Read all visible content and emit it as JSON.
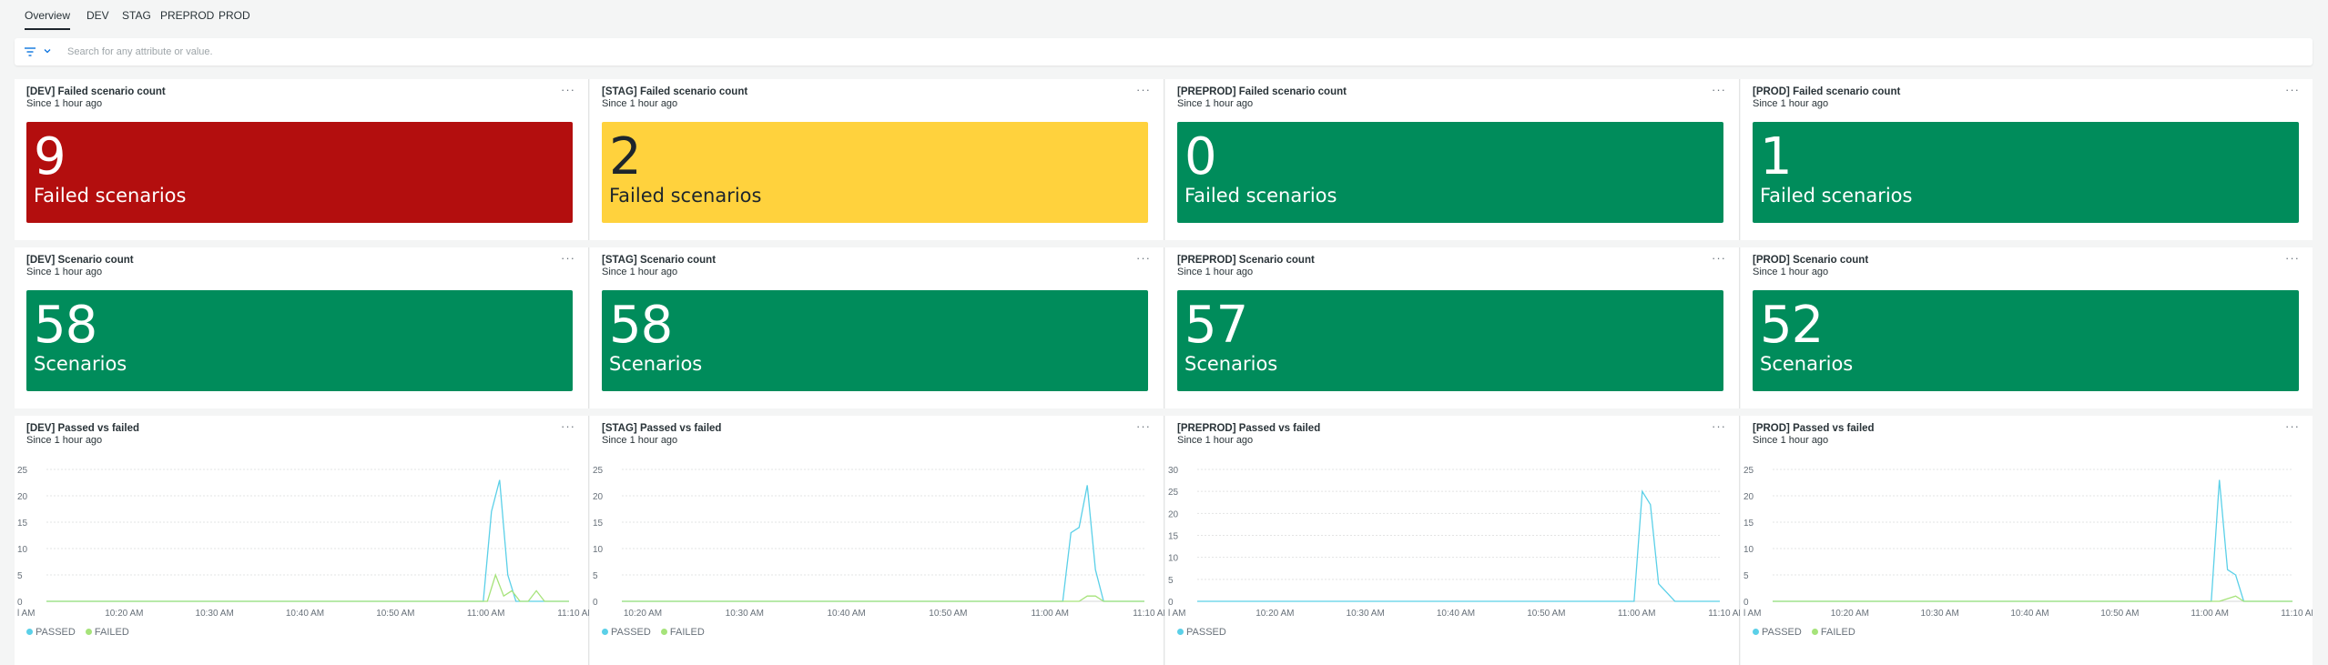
{
  "tabs": [
    {
      "label": "Overview",
      "active": true
    },
    {
      "label": "DEV",
      "active": false
    },
    {
      "label": "STAG",
      "active": false
    },
    {
      "label": "PREPROD",
      "active": false
    },
    {
      "label": "PROD",
      "active": false
    }
  ],
  "filter": {
    "placeholder": "Search for any attribute or value.",
    "icon": "filter-icon"
  },
  "colors": {
    "red": "#b30e0e",
    "yellow": "#ffd23d",
    "green": "#008c5b",
    "passed": "#5bd0e8",
    "failed": "#a6e37a"
  },
  "failed_widgets": [
    {
      "title": "[DEV] Failed scenario count",
      "since": "Since 1 hour ago",
      "value": "9",
      "label": "Failed scenarios",
      "status": "red"
    },
    {
      "title": "[STAG] Failed scenario count",
      "since": "Since 1 hour ago",
      "value": "2",
      "label": "Failed scenarios",
      "status": "yellow"
    },
    {
      "title": "[PREPROD] Failed scenario count",
      "since": "Since 1 hour ago",
      "value": "0",
      "label": "Failed scenarios",
      "status": "green"
    },
    {
      "title": "[PROD] Failed scenario count",
      "since": "Since 1 hour ago",
      "value": "1",
      "label": "Failed scenarios",
      "status": "green"
    }
  ],
  "count_widgets": [
    {
      "title": "[DEV] Scenario count",
      "since": "Since 1 hour ago",
      "value": "58",
      "label": "Scenarios",
      "status": "green"
    },
    {
      "title": "[STAG] Scenario count",
      "since": "Since 1 hour ago",
      "value": "58",
      "label": "Scenarios",
      "status": "green"
    },
    {
      "title": "[PREPROD] Scenario count",
      "since": "Since 1 hour ago",
      "value": "57",
      "label": "Scenarios",
      "status": "green"
    },
    {
      "title": "[PROD] Scenario count",
      "since": "Since 1 hour ago",
      "value": "52",
      "label": "Scenarios",
      "status": "green"
    }
  ],
  "chart_widgets": [
    {
      "title": "[DEV] Passed vs failed",
      "since": "Since 1 hour ago",
      "legend": [
        "PASSED",
        "FAILED"
      ]
    },
    {
      "title": "[STAG] Passed vs failed",
      "since": "Since 1 hour ago",
      "legend": [
        "PASSED",
        "FAILED"
      ]
    },
    {
      "title": "[PREPROD] Passed vs failed",
      "since": "Since 1 hour ago",
      "legend": [
        "PASSED"
      ]
    },
    {
      "title": "[PROD] Passed vs failed",
      "since": "Since 1 hour ago",
      "legend": [
        "PASSED",
        "FAILED"
      ]
    }
  ],
  "chart_data": [
    {
      "type": "line",
      "title": "[DEV] Passed vs failed",
      "x_ticks": [
        "l AM",
        "10:20 AM",
        "10:30 AM",
        "10:40 AM",
        "10:50 AM",
        "11:00 AM",
        "11:10 AM"
      ],
      "y_ticks": [
        0,
        5,
        10,
        15,
        20,
        25
      ],
      "ylim": [
        0,
        25
      ],
      "xlim": [
        0,
        64
      ],
      "grid": true,
      "legend_position": "bottom-left",
      "series": [
        {
          "name": "PASSED",
          "x": [
            0,
            53.5,
            54.5,
            55.5,
            56.5,
            57.5,
            58.5,
            64
          ],
          "y": [
            0,
            0,
            17,
            23,
            5,
            0,
            0,
            0
          ]
        },
        {
          "name": "FAILED",
          "x": [
            0,
            54,
            55,
            56,
            57,
            58,
            59,
            60,
            61,
            64
          ],
          "y": [
            0,
            0,
            5,
            1,
            2,
            0,
            0,
            2,
            0,
            0
          ]
        }
      ]
    },
    {
      "type": "line",
      "title": "[STAG] Passed vs failed",
      "x_ticks": [
        "10:20 AM",
        "10:30 AM",
        "10:40 AM",
        "10:50 AM",
        "11:00 AM",
        "11:10 AM"
      ],
      "y_ticks": [
        0,
        5,
        10,
        15,
        20,
        25
      ],
      "ylim": [
        0,
        25
      ],
      "xlim": [
        0,
        64
      ],
      "grid": true,
      "legend_position": "bottom-left",
      "series": [
        {
          "name": "PASSED",
          "x": [
            0,
            54,
            55,
            56,
            57,
            58,
            59,
            64
          ],
          "y": [
            0,
            0,
            13,
            14,
            22,
            6,
            0,
            0
          ]
        },
        {
          "name": "FAILED",
          "x": [
            0,
            56,
            57,
            58,
            59,
            64
          ],
          "y": [
            0,
            0,
            1,
            1,
            0,
            0
          ]
        }
      ]
    },
    {
      "type": "line",
      "title": "[PREPROD] Passed vs failed",
      "x_ticks": [
        "l AM",
        "10:20 AM",
        "10:30 AM",
        "10:40 AM",
        "10:50 AM",
        "11:00 AM",
        "11:10 AM"
      ],
      "y_ticks": [
        0,
        5,
        10,
        15,
        20,
        25,
        30
      ],
      "ylim": [
        0,
        30
      ],
      "xlim": [
        0,
        64
      ],
      "grid": true,
      "legend_position": "bottom-left",
      "series": [
        {
          "name": "PASSED",
          "x": [
            0,
            53.5,
            54.5,
            55.5,
            56.5,
            57.5,
            58.5,
            64
          ],
          "y": [
            0,
            0,
            25,
            22,
            4,
            2,
            0,
            0
          ]
        }
      ]
    },
    {
      "type": "line",
      "title": "[PROD] Passed vs failed",
      "x_ticks": [
        "l AM",
        "10:20 AM",
        "10:30 AM",
        "10:40 AM",
        "10:50 AM",
        "11:00 AM",
        "11:10 AM"
      ],
      "y_ticks": [
        0,
        5,
        10,
        15,
        20,
        25
      ],
      "ylim": [
        0,
        25
      ],
      "xlim": [
        0,
        64
      ],
      "grid": true,
      "legend_position": "bottom-left",
      "series": [
        {
          "name": "PASSED",
          "x": [
            0,
            54,
            55,
            56,
            57,
            58,
            59,
            64
          ],
          "y": [
            0,
            0,
            23,
            6,
            5,
            0,
            0,
            0
          ]
        },
        {
          "name": "FAILED",
          "x": [
            0,
            55,
            56,
            57,
            58,
            64
          ],
          "y": [
            0,
            0,
            0.5,
            1,
            0,
            0
          ]
        }
      ]
    }
  ]
}
